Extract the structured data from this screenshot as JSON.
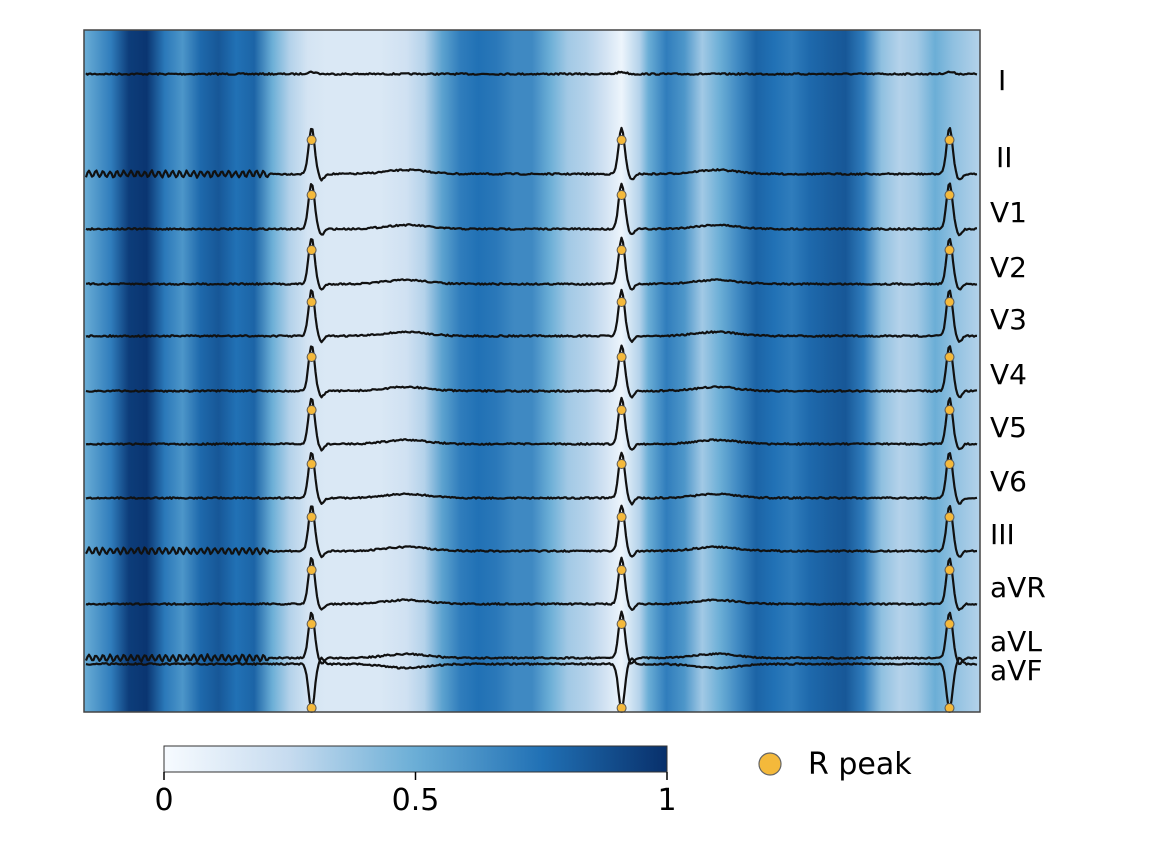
{
  "chart_data": {
    "type": "line",
    "title": "",
    "xlabel": "",
    "ylabel": "",
    "grid": false,
    "leads": [
      "I",
      "II",
      "V1",
      "V2",
      "V3",
      "V4",
      "V5",
      "V6",
      "III",
      "aVR",
      "aVL",
      "aVF"
    ],
    "r_peaks_fraction": [
      0.254,
      0.6,
      0.966
    ],
    "noisy_leads": [
      "II",
      "III",
      "aVL"
    ],
    "inverted_leads": [
      "aVF"
    ],
    "flat_leads": [
      "I"
    ],
    "trace_color": "#111111",
    "r_peak_color": "#f4b93b",
    "attention_background": {
      "x_fraction": [
        0.0,
        0.03,
        0.05,
        0.07,
        0.09,
        0.11,
        0.13,
        0.15,
        0.17,
        0.19,
        0.21,
        0.23,
        0.25,
        0.27,
        0.3,
        0.33,
        0.36,
        0.38,
        0.4,
        0.42,
        0.44,
        0.46,
        0.48,
        0.5,
        0.52,
        0.54,
        0.56,
        0.58,
        0.6,
        0.62,
        0.63,
        0.65,
        0.67,
        0.69,
        0.71,
        0.73,
        0.75,
        0.77,
        0.79,
        0.81,
        0.83,
        0.85,
        0.87,
        0.89,
        0.91,
        0.93,
        0.95,
        0.97,
        1.0
      ],
      "value": [
        0.5,
        0.7,
        0.95,
        0.98,
        0.72,
        0.6,
        0.78,
        0.85,
        0.75,
        0.8,
        0.5,
        0.3,
        0.18,
        0.15,
        0.15,
        0.15,
        0.2,
        0.3,
        0.55,
        0.7,
        0.75,
        0.72,
        0.65,
        0.65,
        0.5,
        0.35,
        0.3,
        0.2,
        0.05,
        0.3,
        0.5,
        0.7,
        0.6,
        0.35,
        0.5,
        0.65,
        0.8,
        0.75,
        0.7,
        0.78,
        0.82,
        0.85,
        0.7,
        0.4,
        0.3,
        0.35,
        0.5,
        0.4,
        0.3
      ]
    },
    "colorbar": {
      "range": [
        0,
        1
      ],
      "ticks": [
        "0",
        "0.5",
        "1"
      ],
      "colors": [
        "#f7fbff",
        "#c6dbef",
        "#6baed6",
        "#2171b5",
        "#08306b"
      ]
    },
    "legend": {
      "label": "R peak",
      "placement": "bottom-right"
    }
  }
}
